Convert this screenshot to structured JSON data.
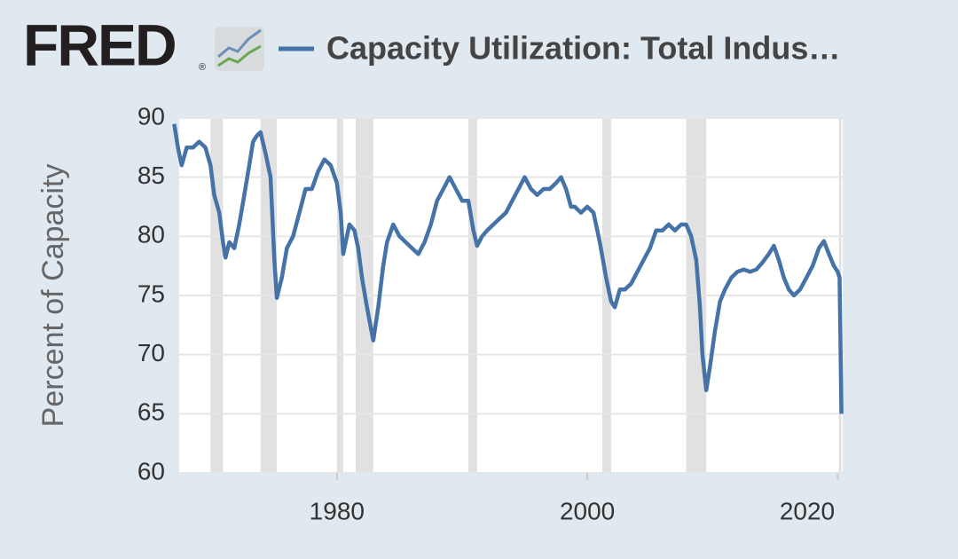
{
  "logo": "FRED",
  "logo_mark": "®",
  "chart_data": {
    "type": "line",
    "y_label": "Percent of Capacity",
    "x": [
      1967.0,
      1967.3,
      1967.6,
      1968.0,
      1968.5,
      1969.0,
      1969.5,
      1969.9,
      1970.2,
      1970.6,
      1970.9,
      1971.1,
      1971.4,
      1971.8,
      1972.2,
      1972.6,
      1973.0,
      1973.3,
      1973.6,
      1973.9,
      1974.3,
      1974.7,
      1975.0,
      1975.2,
      1975.6,
      1976.0,
      1976.5,
      1977.0,
      1977.5,
      1978.0,
      1978.5,
      1979.0,
      1979.5,
      1980.0,
      1980.3,
      1980.5,
      1980.8,
      1981.0,
      1981.4,
      1981.7,
      1982.0,
      1982.4,
      1982.9,
      1983.3,
      1983.7,
      1984.0,
      1984.5,
      1985.0,
      1985.5,
      1986.0,
      1986.5,
      1987.0,
      1987.5,
      1988.0,
      1988.5,
      1989.0,
      1989.5,
      1990.0,
      1990.5,
      1990.9,
      1991.2,
      1991.6,
      1992.0,
      1992.5,
      1993.0,
      1993.5,
      1994.0,
      1994.5,
      1995.0,
      1995.5,
      1996.0,
      1996.5,
      1997.0,
      1997.5,
      1997.9,
      1998.3,
      1998.7,
      1999.0,
      1999.5,
      2000.0,
      2000.5,
      2001.0,
      2001.5,
      2001.9,
      2002.2,
      2002.6,
      2003.0,
      2003.5,
      2004.0,
      2004.5,
      2005.0,
      2005.5,
      2006.0,
      2006.5,
      2007.0,
      2007.5,
      2007.9,
      2008.3,
      2008.7,
      2009.0,
      2009.2,
      2009.5,
      2009.8,
      2010.2,
      2010.6,
      2011.0,
      2011.5,
      2012.0,
      2012.5,
      2013.0,
      2013.5,
      2014.0,
      2014.5,
      2014.9,
      2015.3,
      2015.7,
      2016.1,
      2016.5,
      2017.0,
      2017.5,
      2018.0,
      2018.5,
      2018.9,
      2019.3,
      2019.7,
      2020.0,
      2020.15,
      2020.3
    ],
    "series": [
      {
        "name": "Capacity Utilization: Total Indus…",
        "color": "#4572a7",
        "values": [
          89.5,
          87.5,
          86,
          87.5,
          87.5,
          88,
          87.5,
          86,
          83.5,
          82,
          79.5,
          78.2,
          79.5,
          79,
          81,
          83.5,
          86,
          88,
          88.5,
          88.8,
          87,
          85,
          78,
          74.8,
          76.5,
          79,
          80,
          82,
          84,
          84,
          85.5,
          86.5,
          86,
          84.5,
          82,
          78.5,
          80,
          81,
          80.5,
          79,
          76.5,
          74,
          71.2,
          74,
          77.5,
          79.5,
          81,
          80,
          79.5,
          79,
          78.5,
          79.5,
          81,
          83,
          84,
          85,
          84,
          83,
          83,
          80.5,
          79.2,
          80,
          80.5,
          81,
          81.5,
          82,
          83,
          84,
          85,
          84,
          83.5,
          84,
          84,
          84.5,
          85,
          84,
          82.5,
          82.5,
          82,
          82.5,
          82,
          79.5,
          76.5,
          74.5,
          74,
          75.5,
          75.5,
          76,
          77,
          78,
          79,
          80.5,
          80.5,
          81,
          80.5,
          81,
          81,
          80,
          78,
          74,
          70,
          67,
          69,
          72,
          74.5,
          75.5,
          76.5,
          77,
          77.2,
          77,
          77.2,
          77.8,
          78.5,
          79.2,
          78,
          76.5,
          75.5,
          75,
          75.5,
          76.5,
          77.5,
          79,
          79.6,
          78.5,
          77.5,
          77,
          76.5,
          65
        ]
      }
    ],
    "recessions": [
      [
        1969.9,
        1970.9
      ],
      [
        1973.9,
        1975.2
      ],
      [
        1980.0,
        1980.5
      ],
      [
        1981.5,
        1982.9
      ],
      [
        1990.5,
        1991.2
      ],
      [
        2001.2,
        2001.9
      ],
      [
        2007.9,
        2009.5
      ],
      [
        2020.1,
        2020.3
      ]
    ],
    "recession_color": "#e1e1e1",
    "xlim": [
      1967.4,
      2020.4
    ],
    "xticks": [
      1980,
      2000,
      2020
    ],
    "ylim": [
      60,
      90
    ],
    "yticks": [
      60,
      65,
      70,
      75,
      80,
      85,
      90
    ],
    "grid": true
  }
}
